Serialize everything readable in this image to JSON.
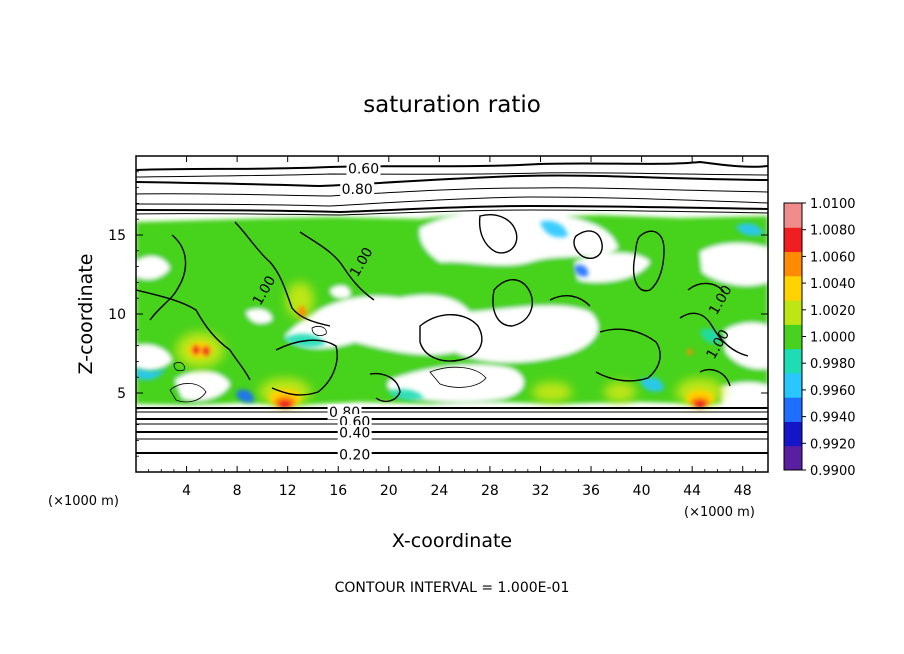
{
  "chart_data": {
    "type": "heatmap",
    "title": "saturation ratio",
    "xlabel": "X-coordinate",
    "ylabel": "Z-coordinate",
    "x_unit_left": "(×1000 m)",
    "x_unit_right": "(×1000 m)",
    "xlim": [
      0,
      50
    ],
    "ylim": [
      0,
      20
    ],
    "x_ticks": [
      4,
      8,
      12,
      16,
      20,
      24,
      28,
      32,
      36,
      40,
      44,
      48
    ],
    "x_tick_labels": [
      "4",
      "8",
      "12",
      "16",
      "20",
      "24",
      "28",
      "32",
      "36",
      "40",
      "44",
      "48"
    ],
    "y_ticks": [
      5,
      10,
      15
    ],
    "y_tick_labels": [
      "5",
      "10",
      "15"
    ],
    "colorbar": {
      "levels": [
        0.99,
        0.992,
        0.994,
        0.996,
        0.998,
        1.0,
        1.002,
        1.004,
        1.006,
        1.008,
        1.01
      ],
      "labels": [
        "0.9900",
        "0.9920",
        "0.9940",
        "0.9960",
        "0.9980",
        "1.0000",
        "1.0020",
        "1.0040",
        "1.0060",
        "1.0080",
        "1.0100"
      ],
      "colors": [
        "#5a1ea0",
        "#1414c8",
        "#1e6eff",
        "#28c8ff",
        "#1edcb4",
        "#46d21e",
        "#bee614",
        "#ffd200",
        "#ff8c00",
        "#f01e1e",
        "#f08c8c"
      ]
    },
    "contour_labels": [
      {
        "text": "0.60",
        "x": 18,
        "z": 19.2
      },
      {
        "text": "0.80",
        "x": 17.5,
        "z": 17.9
      },
      {
        "text": "0.80",
        "x": 16.5,
        "z": 3.8
      },
      {
        "text": "0.60",
        "x": 17.3,
        "z": 3.2
      },
      {
        "text": "0.40",
        "x": 17.3,
        "z": 2.5
      },
      {
        "text": "0.20",
        "x": 17.3,
        "z": 1.1
      },
      {
        "text": "1.00",
        "x": 17.8,
        "z": 13.3
      },
      {
        "text": "1.00",
        "x": 10.1,
        "z": 11.5
      },
      {
        "text": "1.00",
        "x": 46.2,
        "z": 10.9
      },
      {
        "text": "1.00",
        "x": 46,
        "z": 8.1
      }
    ],
    "footer": "CONTOUR INTERVAL = 1.000E-01"
  }
}
